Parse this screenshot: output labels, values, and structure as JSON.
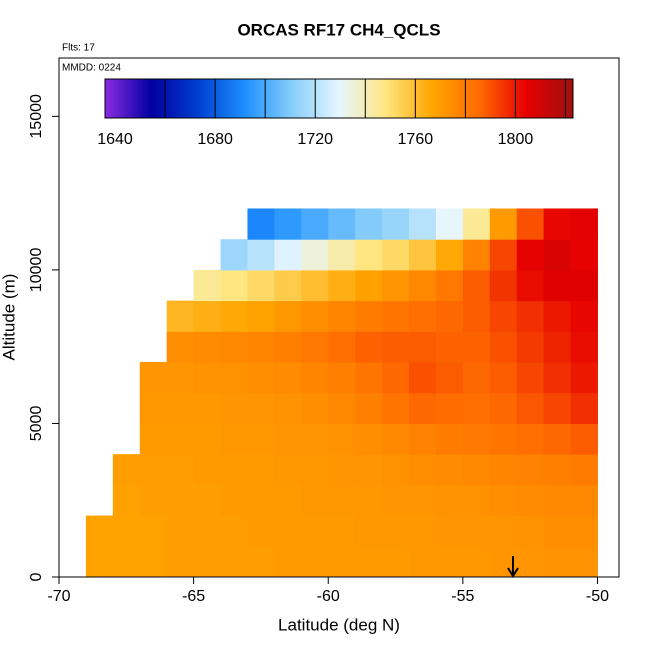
{
  "chart_data": {
    "type": "heatmap",
    "title": "ORCAS RF17 CH4_QCLS",
    "annotations": [
      "Flts: 17",
      "MMDD: 0224"
    ],
    "x_label": "Latitude (deg N)",
    "y_label": "Altitude (m)",
    "xlim": [
      -70,
      -49.2
    ],
    "ylim": [
      0,
      16900
    ],
    "xticks": [
      -70,
      -65,
      -60,
      -55,
      -50
    ],
    "yticks": [
      0,
      5000,
      10000,
      15000
    ],
    "xbins": [
      -69,
      -68,
      -67,
      -66,
      -65,
      -64,
      -63,
      -62,
      -61,
      -60,
      -59,
      -58,
      -57,
      -56,
      -55,
      -54,
      -53,
      -52,
      -51,
      -50
    ],
    "ybins": [
      0,
      1000,
      2000,
      3000,
      4000,
      5000,
      6000,
      7000,
      8000,
      9000,
      10000,
      11000,
      12000
    ],
    "z": [
      [
        1768,
        1768,
        1768,
        1769,
        1769,
        1769,
        1769,
        1770,
        1770,
        1770,
        1770,
        1770,
        1771,
        1771,
        1771,
        1772,
        1772,
        1773,
        1773
      ],
      [
        1768,
        1768,
        1768,
        1769,
        1769,
        1769,
        1770,
        1770,
        1770,
        1770,
        1771,
        1771,
        1771,
        1772,
        1772,
        1772,
        1773,
        1774,
        1774
      ],
      [
        null,
        1768,
        1769,
        1769,
        1769,
        1770,
        1770,
        1770,
        1771,
        1771,
        1771,
        1772,
        1772,
        1773,
        1773,
        1774,
        1775,
        1776,
        1776
      ],
      [
        null,
        1769,
        1769,
        1769,
        1770,
        1770,
        1770,
        1771,
        1771,
        1772,
        1772,
        1773,
        1774,
        1775,
        1776,
        1777,
        1778,
        1779,
        1780
      ],
      [
        null,
        null,
        1770,
        1770,
        1770,
        1771,
        1771,
        1772,
        1772,
        1773,
        1774,
        1776,
        1778,
        1780,
        1781,
        1782,
        1784,
        1786,
        1788
      ],
      [
        null,
        null,
        1771,
        1771,
        1771,
        1772,
        1772,
        1773,
        1774,
        1776,
        1779,
        1782,
        1786,
        1785,
        1784,
        1786,
        1789,
        1792,
        1796
      ],
      [
        null,
        null,
        1772,
        1772,
        1773,
        1773,
        1774,
        1775,
        1777,
        1779,
        1782,
        1786,
        1790,
        1788,
        1786,
        1788,
        1792,
        1796,
        1800
      ],
      [
        null,
        null,
        null,
        1774,
        1775,
        1776,
        1777,
        1779,
        1781,
        1784,
        1787,
        1788,
        1788,
        1787,
        1787,
        1790,
        1794,
        1798,
        1802
      ],
      [
        null,
        null,
        null,
        1762,
        1764,
        1766,
        1768,
        1771,
        1774,
        1777,
        1780,
        1782,
        1784,
        1786,
        1788,
        1792,
        1796,
        1800,
        1803
      ],
      [
        null,
        null,
        null,
        null,
        1745,
        1748,
        1752,
        1756,
        1760,
        1764,
        1768,
        1772,
        1776,
        1781,
        1788,
        1795,
        1802,
        1806,
        1806
      ],
      [
        null,
        null,
        null,
        null,
        null,
        1715,
        1720,
        1728,
        1735,
        1742,
        1748,
        1752,
        1758,
        1766,
        1778,
        1792,
        1804,
        1808,
        1804
      ],
      [
        null,
        null,
        null,
        null,
        null,
        null,
        1690,
        1695,
        1700,
        1705,
        1710,
        1714,
        1720,
        1730,
        1745,
        1770,
        1790,
        1803,
        1805
      ]
    ],
    "clim": [
      1636,
      1823
    ],
    "cticks": [
      1640,
      1680,
      1720,
      1760,
      1800
    ],
    "cbreaks": [
      1660,
      1680,
      1700,
      1720,
      1740,
      1760,
      1780,
      1800,
      1820
    ],
    "colormap": [
      "#8a2be2",
      "#0000a0",
      "#0040d0",
      "#1e90ff",
      "#87cefa",
      "#e6f6ff",
      "#ffe680",
      "#ffa500",
      "#ff6a00",
      "#e60000",
      "#a01010"
    ]
  }
}
